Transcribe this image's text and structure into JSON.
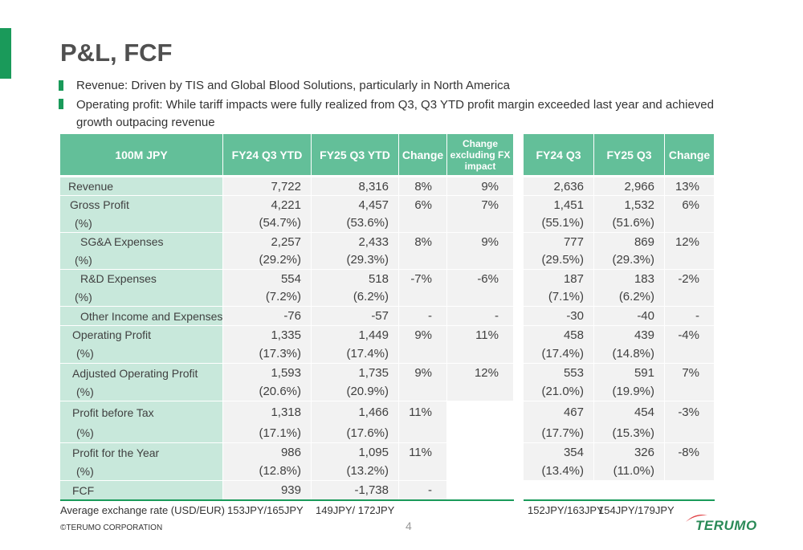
{
  "header": {
    "title": "P&L, FCF"
  },
  "bullets": [
    "Revenue: Driven by TIS and Global Blood Solutions, particularly in North America",
    "Operating profit: While tariff impacts were fully realized from Q3, Q3 YTD profit margin exceeded last year and achieved growth outpacing revenue"
  ],
  "table": {
    "columns": [
      "100M JPY",
      "FY24 Q3 YTD",
      "FY25 Q3 YTD",
      "Change",
      "Change excluding FX impact",
      "FY24 Q3",
      "FY25 Q3",
      "Change"
    ],
    "rows": [
      [
        "Revenue",
        "7,722",
        "8,316",
        "8%",
        "9%",
        "2,636",
        "2,966",
        "13%"
      ],
      [
        "Gross Profit",
        "4,221",
        "4,457",
        "6%",
        "7%",
        "1,451",
        "1,532",
        "6%"
      ],
      [
        "(%)",
        "(54.7%)",
        "(53.6%)",
        null,
        null,
        "(55.1%)",
        "(51.6%)",
        null
      ],
      [
        "SG&A Expenses",
        "2,257",
        "2,433",
        "8%",
        "9%",
        "777",
        "869",
        "12%"
      ],
      [
        "(%)",
        "(29.2%)",
        "(29.3%)",
        null,
        null,
        "(29.5%)",
        "(29.3%)",
        null
      ],
      [
        "R&D Expenses",
        "554",
        "518",
        "-7%",
        "-6%",
        "187",
        "183",
        "-2%"
      ],
      [
        "(%)",
        "(7.2%)",
        "(6.2%)",
        null,
        null,
        "(7.1%)",
        "(6.2%)",
        null
      ],
      [
        "Other Income and Expenses",
        "-76",
        "-57",
        "-",
        "-",
        "-30",
        "-40",
        "-"
      ],
      [
        "Operating Profit",
        "1,335",
        "1,449",
        "9%",
        "11%",
        "458",
        "439",
        "-4%"
      ],
      [
        "(%)",
        "(17.3%)",
        "(17.4%)",
        null,
        null,
        "(17.4%)",
        "(14.8%)",
        null
      ],
      [
        "Adjusted Operating Profit",
        "1,593",
        "1,735",
        "9%",
        "12%",
        "553",
        "591",
        "7%"
      ],
      [
        "(%)",
        "(20.6%)",
        "(20.9%)",
        null,
        null,
        "(21.0%)",
        "(19.9%)",
        null
      ],
      [
        "Profit before Tax",
        "1,318",
        "1,466",
        "11%",
        null,
        "467",
        "454",
        "-3%"
      ],
      [
        "(%)",
        "(17.1%)",
        "(17.6%)",
        null,
        null,
        "(17.7%)",
        "(15.3%)",
        null
      ],
      [
        "Profit for the Year",
        "986",
        "1,095",
        "11%",
        null,
        "354",
        "326",
        "-8%"
      ],
      [
        "(%)",
        "(12.8%)",
        "(13.2%)",
        null,
        null,
        "(13.4%)",
        "(11.0%)",
        null
      ],
      [
        "FCF",
        "939",
        "-1,738",
        "-",
        null,
        null,
        null,
        null
      ]
    ]
  },
  "exchange": {
    "label": "Average exchange rate (USD/EUR)",
    "values": [
      "153JPY/165JPY",
      "149JPY/ 172JPY",
      "152JPY/163JPY",
      "154JPY/179JPY"
    ]
  },
  "footer": {
    "copyright": "©TERUMO CORPORATION",
    "page": "4",
    "logo": "TERUMO"
  }
}
